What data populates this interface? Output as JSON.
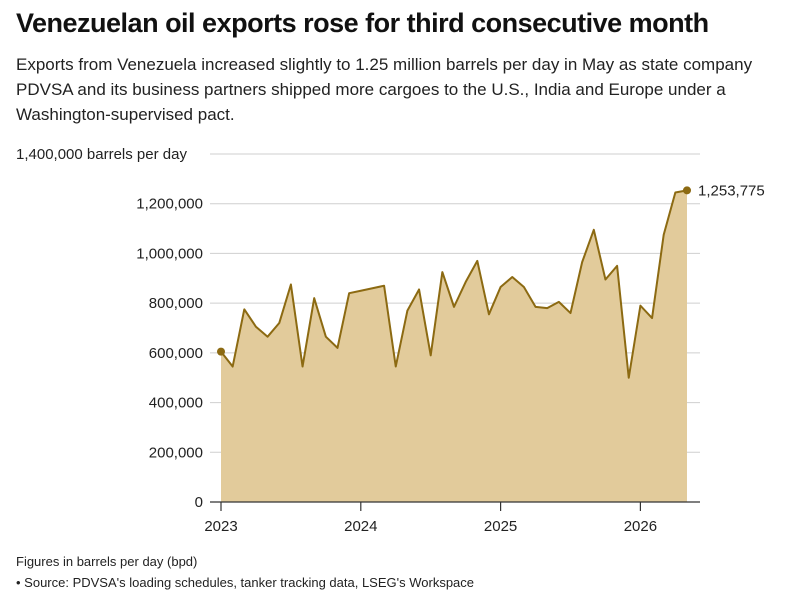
{
  "header": {
    "title": "Venezuelan oil exports rose for third consecutive month",
    "subtitle": "Exports from Venezuela increased slightly to 1.25 million barrels per day in May as state company PDVSA and its business partners shipped more cargoes to the U.S., India and Europe under a Washington-supervised pact."
  },
  "footer": {
    "note": "Figures in barrels per day (bpd)",
    "source": "• Source: PDVSA's loading schedules, tanker tracking data, LSEG's Workspace"
  },
  "colors": {
    "line": "#8c6a12",
    "area": "#e2cb9b",
    "grid": "#cfcfcf",
    "axis": "#333333"
  },
  "chart_data": {
    "type": "area",
    "title": "Venezuelan oil exports rose for third consecutive month",
    "ylabel": "1,400,000 barrels per day",
    "y_tick_labels": [
      "0",
      "200,000",
      "400,000",
      "600,000",
      "800,000",
      "1,000,000",
      "1,200,000",
      "1,400,000 barrels per day"
    ],
    "y_ticks": [
      0,
      200000,
      400000,
      600000,
      800000,
      1000000,
      1200000,
      1400000
    ],
    "ylim": [
      0,
      1400000
    ],
    "x_ticks": [
      "2023",
      "2024",
      "2025",
      "2026"
    ],
    "xlim": [
      "2023-01",
      "2026-05"
    ],
    "grid": true,
    "end_label": "1,253,775",
    "series": [
      {
        "x": [
          "2023-01",
          "2023-02",
          "2023-03",
          "2023-04",
          "2023-05",
          "2023-06",
          "2023-07",
          "2023-08",
          "2023-09",
          "2023-10",
          "2023-11",
          "2023-12",
          "2024-01",
          "2024-02",
          "2024-03",
          "2024-04",
          "2024-05",
          "2024-06",
          "2024-07",
          "2024-08",
          "2024-09",
          "2024-10",
          "2024-11",
          "2024-12",
          "2025-01",
          "2025-02",
          "2025-03",
          "2025-04",
          "2025-05",
          "2025-06",
          "2025-07",
          "2025-08",
          "2025-09",
          "2025-10",
          "2025-11",
          "2025-12",
          "2026-01",
          "2026-02",
          "2026-03",
          "2026-04",
          "2026-05"
        ],
        "values": [
          605000,
          545000,
          775000,
          705000,
          665000,
          720000,
          875000,
          545000,
          820000,
          665000,
          620000,
          840000,
          850000,
          860000,
          870000,
          545000,
          770000,
          855000,
          590000,
          925000,
          785000,
          885000,
          970000,
          755000,
          865000,
          905000,
          865000,
          785000,
          780000,
          805000,
          760000,
          965000,
          1095000,
          895000,
          950000,
          500000,
          790000,
          740000,
          1075000,
          1245000,
          1253775
        ]
      }
    ]
  }
}
